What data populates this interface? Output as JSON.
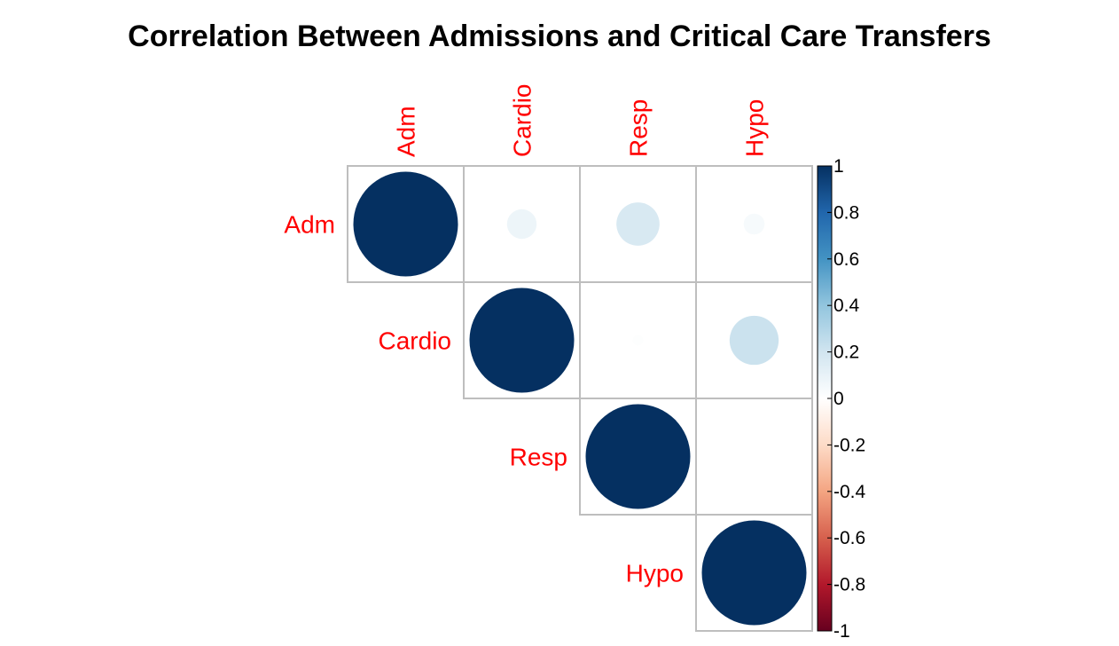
{
  "chart_data": {
    "type": "heatmap",
    "subtype": "correlation-circle-upper",
    "title": "Correlation Between Admissions and Critical Care Transfers",
    "variables": [
      "Adm",
      "Cardio",
      "Resp",
      "Hypo"
    ],
    "matrix": [
      [
        1.0,
        0.08,
        0.17,
        0.04
      ],
      [
        0.08,
        1.0,
        0.01,
        0.22
      ],
      [
        0.17,
        0.01,
        1.0,
        0.0
      ],
      [
        0.04,
        0.22,
        0.0,
        1.0
      ]
    ],
    "colorbar": {
      "ticks": [
        "1",
        "0.8",
        "0.6",
        "0.4",
        "0.2",
        "0",
        "-0.2",
        "-0.4",
        "-0.6",
        "-0.8",
        "-1"
      ],
      "range": [
        -1,
        1
      ],
      "colors": [
        "#67001F",
        "#B2182B",
        "#D6604D",
        "#F4A582",
        "#FDDBC7",
        "#FFFFFF",
        "#D1E5F0",
        "#92C5DE",
        "#4393C3",
        "#2166AC",
        "#053061"
      ]
    },
    "label_color": "#ff0000",
    "grid_color": "#bebebe"
  }
}
